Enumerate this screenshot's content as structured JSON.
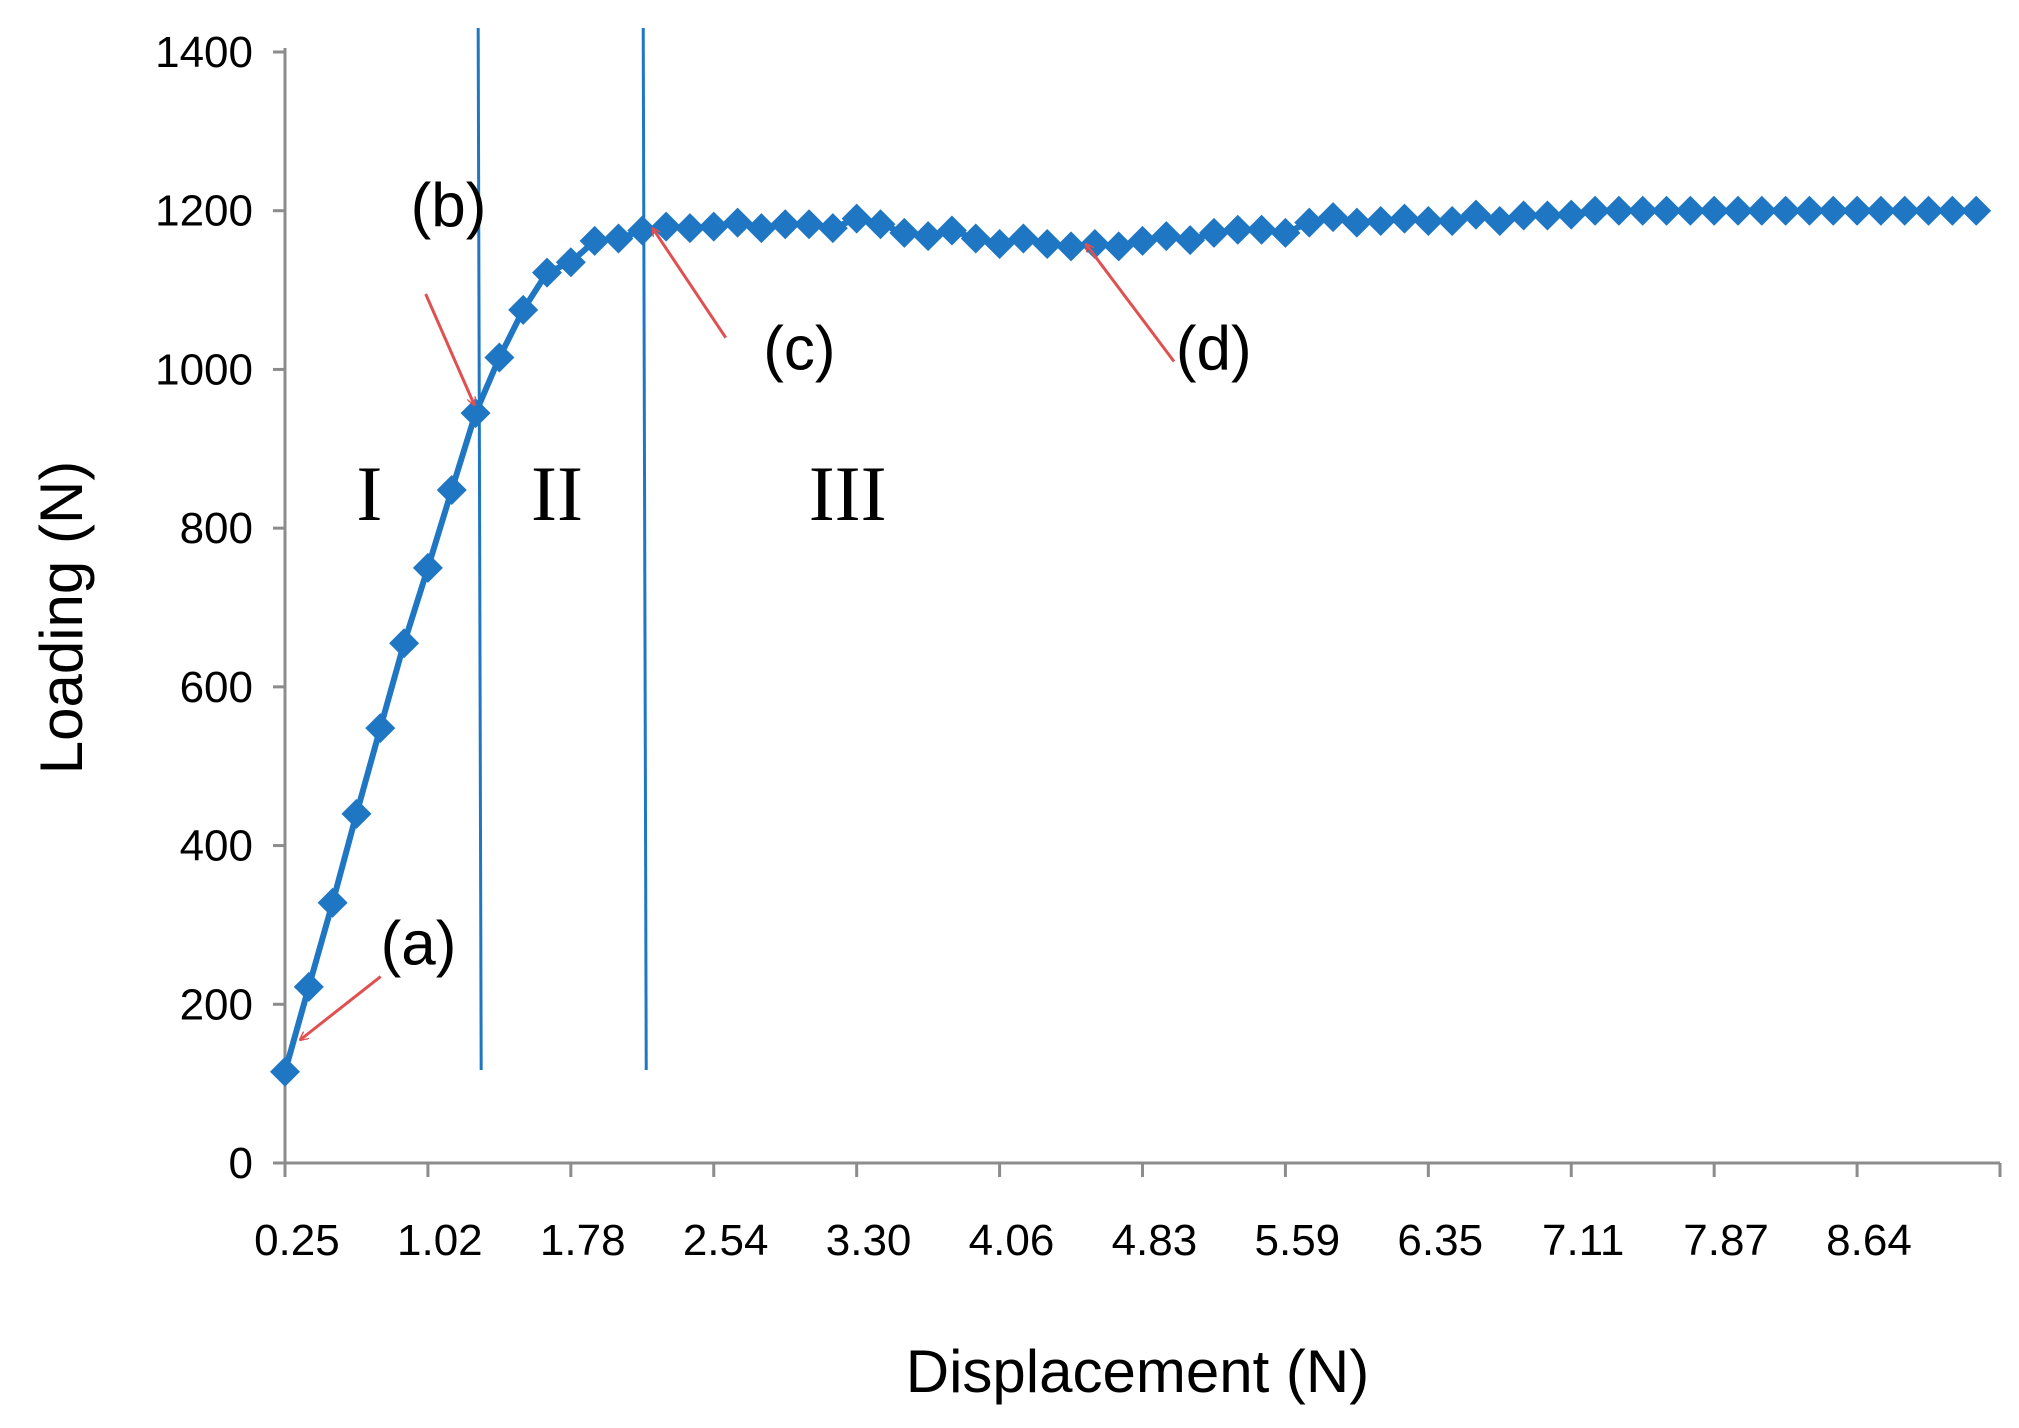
{
  "chart_data": {
    "type": "line",
    "xlabel": "Displacement (N)",
    "ylabel": "Loading (N)",
    "ylim": [
      0,
      1400
    ],
    "yticks": [
      "0",
      "200",
      "400",
      "600",
      "800",
      "1000",
      "1200",
      "1400"
    ],
    "xticks": [
      "0.25",
      "1.02",
      "1.78",
      "2.54",
      "3.30",
      "4.06",
      "4.83",
      "5.59",
      "6.35",
      "7.11",
      "7.87",
      "8.64"
    ],
    "x_step": 0.127,
    "marker": "diamond",
    "grid": false,
    "legend": "none",
    "color": "#1f77c4",
    "annotation_color": "#e05050",
    "series": [
      {
        "values": [
          115,
          222,
          328,
          440,
          548,
          655,
          750,
          848,
          945,
          1015,
          1075,
          1122,
          1135,
          1162,
          1165,
          1175,
          1180,
          1178,
          1180,
          1185,
          1178,
          1183,
          1183,
          1178,
          1190,
          1183,
          1172,
          1168,
          1175,
          1165,
          1158,
          1165,
          1158,
          1155,
          1158,
          1155,
          1162,
          1168,
          1163,
          1172,
          1176,
          1176,
          1172,
          1185,
          1192,
          1185,
          1187,
          1190,
          1187,
          1187,
          1195,
          1187,
          1194,
          1194,
          1195,
          1200,
          1200,
          1200,
          1200,
          1200,
          1200,
          1200,
          1200,
          1200,
          1200,
          1200,
          1200,
          1200,
          1200,
          1200,
          1200,
          1200
        ]
      }
    ],
    "region_boundaries": [
      1.28,
      2.16
    ],
    "regions": [
      {
        "label": "I",
        "x": 0.7,
        "y": 810
      },
      {
        "label": "II",
        "x": 1.7,
        "y": 810
      },
      {
        "label": "III",
        "x": 3.25,
        "y": 810
      }
    ],
    "annotations": [
      {
        "label": "(a)",
        "x": 0.76,
        "y": 250,
        "arrow_from": [
          0.76,
          235
        ],
        "arrow_to": [
          0.33,
          155
        ]
      },
      {
        "label": "(b)",
        "x": 0.92,
        "y": 1180,
        "arrow_from": [
          1.0,
          1095
        ],
        "arrow_to": [
          1.26,
          955
        ]
      },
      {
        "label": "(c)",
        "x": 2.8,
        "y": 1000,
        "arrow_from": [
          2.6,
          1040
        ],
        "arrow_to": [
          2.21,
          1178
        ]
      },
      {
        "label": "(d)",
        "x": 5.0,
        "y": 1000,
        "arrow_from": [
          4.99,
          1010
        ],
        "arrow_to": [
          4.52,
          1158
        ]
      }
    ]
  }
}
